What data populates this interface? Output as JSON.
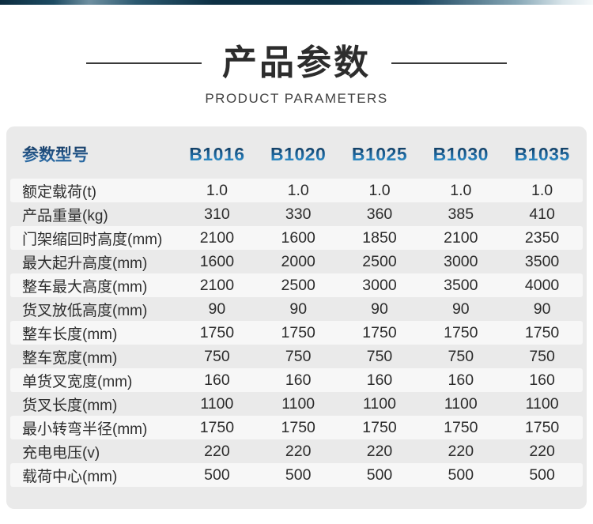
{
  "header": {
    "title": "产品参数",
    "subtitle": "PRODUCT PARAMETERS"
  },
  "table": {
    "header_label": "参数型号",
    "models": [
      "B1016",
      "B1020",
      "B1025",
      "B1030",
      "B1035"
    ],
    "rows": [
      {
        "label": "额定载荷(t)",
        "values": [
          "1.0",
          "1.0",
          "1.0",
          "1.0",
          "1.0"
        ]
      },
      {
        "label": "产品重量(kg)",
        "values": [
          "310",
          "330",
          "360",
          "385",
          "410"
        ]
      },
      {
        "label": "门架缩回时高度(mm)",
        "values": [
          "2100",
          "1600",
          "1850",
          "2100",
          "2350"
        ]
      },
      {
        "label": "最大起升高度(mm)",
        "values": [
          "1600",
          "2000",
          "2500",
          "3000",
          "3500"
        ]
      },
      {
        "label": "整车最大高度(mm)",
        "values": [
          "2100",
          "2500",
          "3000",
          "3500",
          "4000"
        ]
      },
      {
        "label": "货叉放低高度(mm)",
        "values": [
          "90",
          "90",
          "90",
          "90",
          "90"
        ]
      },
      {
        "label": "整车长度(mm)",
        "values": [
          "1750",
          "1750",
          "1750",
          "1750",
          "1750"
        ]
      },
      {
        "label": "整车宽度(mm)",
        "values": [
          "750",
          "750",
          "750",
          "750",
          "750"
        ]
      },
      {
        "label": "单货叉宽度(mm)",
        "values": [
          "160",
          "160",
          "160",
          "160",
          "160"
        ]
      },
      {
        "label": "货叉长度(mm)",
        "values": [
          "1100",
          "1100",
          "1100",
          "1100",
          "1100"
        ]
      },
      {
        "label": "最小转弯半径(mm)",
        "values": [
          "1750",
          "1750",
          "1750",
          "1750",
          "1750"
        ]
      },
      {
        "label": "充电电压(v)",
        "values": [
          "220",
          "220",
          "220",
          "220",
          "220"
        ]
      },
      {
        "label": "载荷中心(mm)",
        "values": [
          "500",
          "500",
          "500",
          "500",
          "500"
        ]
      }
    ]
  },
  "colors": {
    "topbar_dark": "#0d3044",
    "card_background": "#eaeaea",
    "stripe_background": "#f7f7f7",
    "header_text_gradient_top": "#0e3150",
    "header_text_gradient_bottom": "#3da6dc",
    "title_text": "#2d2d2d",
    "body_text": "#2e2e2e"
  }
}
